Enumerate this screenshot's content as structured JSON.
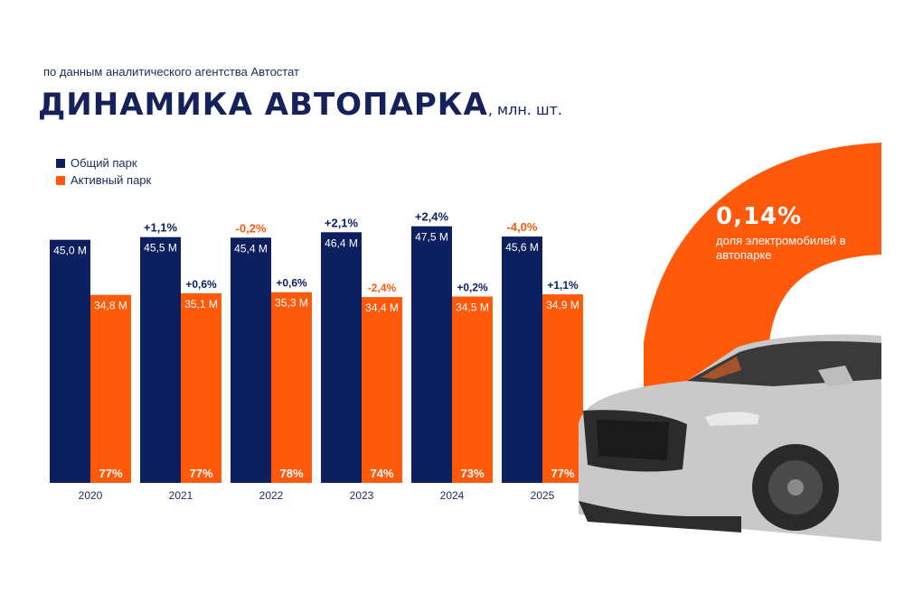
{
  "header": {
    "source_note": "по данным аналитического агентства Автостат",
    "title": "ДИНАМИКА АВТОПАРКА",
    "title_unit": ", млн. шт."
  },
  "highlight": {
    "value": "0,14%",
    "label": "доля электромобилей в автопарке"
  },
  "colors": {
    "navy": "#0c1f5e",
    "orange": "#ff5a0c",
    "car_body": "#c8c8c8"
  },
  "chart_data": {
    "type": "bar",
    "categories": [
      "2020",
      "2021",
      "2022",
      "2023",
      "2024",
      "2025"
    ],
    "ylim": [
      0,
      50
    ],
    "series": [
      {
        "name": "Общий парк",
        "color": "#0c1f5e",
        "values": [
          45.0,
          45.5,
          45.4,
          46.4,
          47.5,
          45.6
        ],
        "value_labels": [
          "45,0 М",
          "45,5 М",
          "45,4 М",
          "46,4 М",
          "47,5 М",
          "45,6 М"
        ],
        "change_labels": [
          "",
          "+1,1%",
          "-0,2%",
          "+2,1%",
          "+2,4%",
          "-4,0%"
        ],
        "change_colors": [
          "",
          "#0c1f5e",
          "#ff5a0c",
          "#0c1f5e",
          "#0c1f5e",
          "#ff5a0c"
        ]
      },
      {
        "name": "Активный парк",
        "color": "#ff5a0c",
        "values": [
          34.8,
          35.1,
          35.3,
          34.4,
          34.5,
          34.9
        ],
        "value_labels": [
          "34,8 М",
          "35,1 М",
          "35,3 М",
          "34,4 М",
          "34,5 М",
          "34,9 М"
        ],
        "change_labels": [
          "",
          "+0,6%",
          "+0,6%",
          "-2,4%",
          "+0,2%",
          "+1,1%"
        ],
        "change_colors": [
          "",
          "#0c1f5e",
          "#0c1f5e",
          "#ff5a0c",
          "#0c1f5e",
          "#0c1f5e"
        ],
        "share_labels": [
          "77%",
          "77%",
          "78%",
          "74%",
          "73%",
          "77%"
        ]
      }
    ],
    "legend_position": "top-left",
    "grid": false
  }
}
